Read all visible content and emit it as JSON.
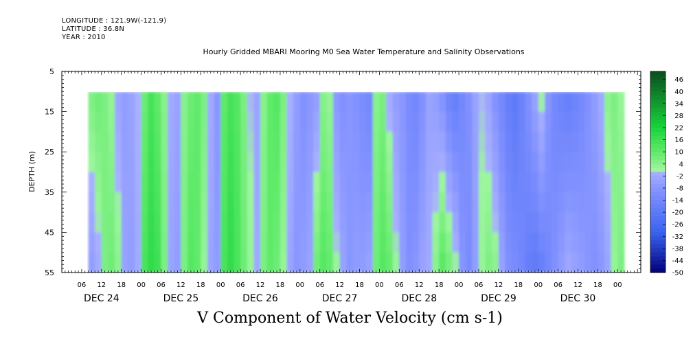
{
  "header": {
    "longitude": "LONGITUDE : 121.9W(-121.9)",
    "latitude": "LATITUDE : 36.8N",
    "year": "YEAR : 2010"
  },
  "chart_data": {
    "type": "heatmap",
    "title": "Hourly Gridded MBARI Mooring M0 Sea Water Temperature and Salinity Observations",
    "xlabel": "V Component of Water Velocity (cm s-1)",
    "ylabel": "DEPTH (m)",
    "ylim": [
      5,
      55
    ],
    "y_ticks": [
      5,
      15,
      25,
      35,
      45,
      55
    ],
    "y_data_range": [
      10,
      55
    ],
    "x_hour_ticks": [
      "06",
      "12",
      "18",
      "00",
      "06",
      "12",
      "18",
      "00",
      "06",
      "12",
      "18",
      "00",
      "06",
      "12",
      "18",
      "00",
      "06",
      "12",
      "18",
      "00",
      "06",
      "12",
      "18",
      "00",
      "06",
      "12",
      "18",
      "00"
    ],
    "x_day_labels": [
      "DEC 24",
      "DEC 25",
      "DEC 26",
      "DEC 27",
      "DEC 28",
      "DEC 29",
      "DEC 30"
    ],
    "colorbar_labels": [
      "46",
      "40",
      "34",
      "28",
      "22",
      "16",
      "10",
      "4",
      "-2",
      "-8",
      "-14",
      "-20",
      "-26",
      "-32",
      "-38",
      "-44",
      "-50"
    ],
    "colorbar_range": [
      -50,
      50
    ],
    "colorbar_colors": {
      "strong_positive": "#0a4d1e",
      "positive": "#17d43c",
      "weak_positive": "#9df59d",
      "weak_negative": "#a9b0ff",
      "negative": "#3a63f0",
      "strong_negative": "#00007a"
    },
    "grid": false,
    "column_series_hours_from_dec24_00": {
      "name": "",
      "hours": [
        8,
        10,
        12,
        14,
        16,
        18,
        20,
        22,
        24,
        26,
        28,
        30,
        32,
        34,
        36,
        38,
        40,
        42,
        44,
        46,
        48,
        50,
        52,
        54,
        56,
        58,
        60,
        62,
        64,
        66,
        68,
        70,
        72,
        74,
        76,
        78,
        80,
        82,
        84,
        86,
        88,
        90,
        92,
        94,
        96,
        98,
        100,
        102,
        104,
        106,
        108,
        110,
        112,
        114,
        116,
        118,
        120,
        122,
        124,
        126,
        128,
        130,
        132,
        134,
        136,
        138,
        140,
        142,
        144,
        146,
        148,
        150,
        152,
        154,
        156,
        158,
        160,
        162,
        164,
        166,
        168
      ],
      "v_shallow": [
        6,
        8,
        6,
        2,
        -4,
        -6,
        -4,
        0,
        8,
        14,
        10,
        4,
        -2,
        -4,
        4,
        8,
        10,
        6,
        -2,
        -8,
        10,
        14,
        12,
        6,
        0,
        -4,
        4,
        10,
        12,
        6,
        0,
        -6,
        -10,
        -8,
        -6,
        4,
        2,
        -8,
        -10,
        -8,
        -10,
        -12,
        -14,
        4,
        6,
        -2,
        -6,
        -8,
        -12,
        -14,
        -10,
        -4,
        -6,
        -10,
        -16,
        -18,
        -14,
        -10,
        -4,
        0,
        -4,
        -10,
        -14,
        -18,
        -20,
        -16,
        -10,
        -4,
        2,
        -8,
        -14,
        -16,
        -18,
        -16,
        -14,
        -10,
        -6,
        -2,
        4,
        6,
        2
      ],
      "v_deep": [
        -6,
        -2,
        6,
        8,
        4,
        -4,
        -6,
        -2,
        14,
        18,
        16,
        6,
        -4,
        -6,
        6,
        12,
        10,
        2,
        -4,
        -6,
        14,
        18,
        14,
        8,
        2,
        -2,
        6,
        10,
        8,
        2,
        -4,
        -8,
        -6,
        -4,
        8,
        12,
        10,
        2,
        -4,
        -8,
        -6,
        -6,
        -4,
        8,
        12,
        10,
        2,
        -6,
        -10,
        -8,
        -4,
        -2,
        4,
        12,
        8,
        2,
        -8,
        -12,
        -6,
        2,
        6,
        4,
        -4,
        -10,
        -12,
        -14,
        -18,
        -20,
        -18,
        -14,
        -10,
        -6,
        -2,
        -4,
        -6,
        -8,
        -10,
        -8,
        -4,
        2,
        6
      ]
    }
  }
}
